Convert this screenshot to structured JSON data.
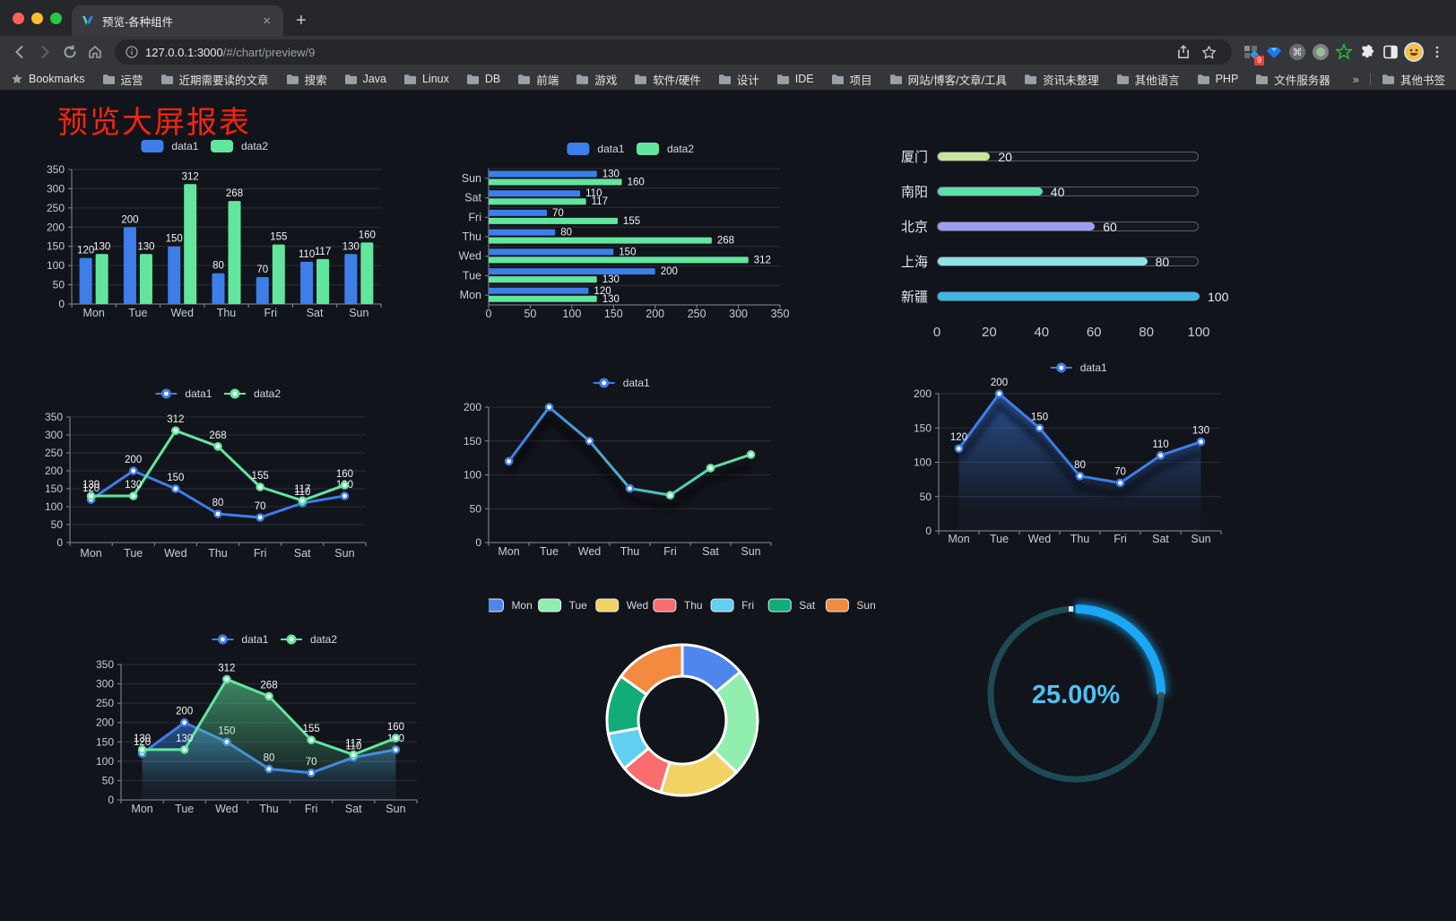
{
  "browser": {
    "tab_title": "预览-各种组件",
    "close_glyph": "×",
    "new_tab_glyph": "+",
    "url_host": "127.0.0.1:3000",
    "url_path": "/#/chart/preview/9",
    "extension_badge": "9",
    "bookmarks_label": "Bookmarks",
    "bookmark_folders": [
      "运营",
      "近期需要读的文章",
      "搜索",
      "Java",
      "Linux",
      "DB",
      "前端",
      "游戏",
      "软件/硬件",
      "设计",
      "IDE",
      "项目",
      "网站/博客/文章/工具",
      "资讯未整理",
      "其他语言",
      "PHP",
      "文件服务器"
    ],
    "overflow_chevron": "»",
    "other_bookmarks": "其他书签",
    "traffic_lights": {
      "close": "#FF5F57",
      "minimize": "#FEBC2E",
      "zoom": "#28C840"
    },
    "icons": {
      "toolbar": [
        "back-arrow",
        "forward-arrow",
        "reload",
        "home"
      ],
      "omnibox": [
        "info",
        "share",
        "bookmark-star"
      ],
      "extensions": [
        "grid-diamond-badge",
        "gem",
        "command",
        "record",
        "green-star",
        "puzzle",
        "split-view",
        "avatar-emoji",
        "kebab-menu"
      ]
    }
  },
  "page": {
    "title": "预览大屏报表",
    "title_color": "#F5250F",
    "background": "#12141B"
  },
  "chart_data": [
    {
      "id": "bar-grouped",
      "type": "bar",
      "categories": [
        "Mon",
        "Tue",
        "Wed",
        "Thu",
        "Fri",
        "Sat",
        "Sun"
      ],
      "series": [
        {
          "name": "data1",
          "color": "#3D7EE9",
          "values": [
            120,
            200,
            150,
            80,
            70,
            110,
            130
          ]
        },
        {
          "name": "data2",
          "color": "#62E69E",
          "values": [
            130,
            130,
            312,
            268,
            155,
            117,
            160
          ]
        }
      ],
      "ylim": [
        0,
        350
      ],
      "ystep": 50,
      "grid": true,
      "legend_position": "top",
      "point_labels": true
    },
    {
      "id": "bar-horizontal",
      "type": "bar-horizontal",
      "categories": [
        "Mon",
        "Tue",
        "Wed",
        "Thu",
        "Fri",
        "Sat",
        "Sun"
      ],
      "display_note": "Sun at top, Mon at bottom",
      "series": [
        {
          "name": "data1",
          "color": "#3D7EE9",
          "values": [
            120,
            200,
            150,
            80,
            70,
            110,
            130
          ]
        },
        {
          "name": "data2",
          "color": "#62E69E",
          "values": [
            130,
            130,
            312,
            268,
            155,
            117,
            160
          ]
        }
      ],
      "xlim": [
        0,
        350
      ],
      "xstep": 50,
      "legend_position": "top",
      "point_labels": true
    },
    {
      "id": "progress-capsules",
      "type": "progress-bars",
      "items": [
        {
          "label": "厦门",
          "value": 20,
          "color": "#C6E79B"
        },
        {
          "label": "南阳",
          "value": 40,
          "color": "#5BE1A6"
        },
        {
          "label": "北京",
          "value": 60,
          "color": "#9B9FF3"
        },
        {
          "label": "上海",
          "value": 80,
          "color": "#8EE3E6"
        },
        {
          "label": "新疆",
          "value": 100,
          "color": "#3FB6E6"
        }
      ],
      "xlim": [
        0,
        100
      ],
      "xticks": [
        0,
        20,
        40,
        60,
        80,
        100
      ]
    },
    {
      "id": "line-dual",
      "type": "line",
      "categories": [
        "Mon",
        "Tue",
        "Wed",
        "Thu",
        "Fri",
        "Sat",
        "Sun"
      ],
      "series": [
        {
          "name": "data1",
          "color": "#3D7EE9",
          "values": [
            120,
            200,
            150,
            80,
            70,
            110,
            130
          ]
        },
        {
          "name": "data2",
          "color": "#62E69E",
          "values": [
            130,
            130,
            312,
            268,
            155,
            117,
            160
          ]
        }
      ],
      "ylim": [
        0,
        350
      ],
      "ystep": 50,
      "legend_position": "top",
      "point_labels": true
    },
    {
      "id": "line-gradient",
      "type": "line",
      "categories": [
        "Mon",
        "Tue",
        "Wed",
        "Thu",
        "Fri",
        "Sat",
        "Sun"
      ],
      "series": [
        {
          "name": "data1",
          "color": "#3D7EE9",
          "color_gradient": [
            "#3D7EE9",
            "#62E69E"
          ],
          "shadow": true,
          "values": [
            120,
            200,
            150,
            80,
            70,
            110,
            130
          ]
        }
      ],
      "ylim": [
        0,
        200
      ],
      "ystep": 50,
      "legend_position": "top",
      "point_labels": false
    },
    {
      "id": "area-single",
      "type": "area",
      "categories": [
        "Mon",
        "Tue",
        "Wed",
        "Thu",
        "Fri",
        "Sat",
        "Sun"
      ],
      "series": [
        {
          "name": "data1",
          "color": "#3D7EE9",
          "area": true,
          "shadow": true,
          "values": [
            120,
            200,
            150,
            80,
            70,
            110,
            130
          ]
        }
      ],
      "ylim": [
        0,
        200
      ],
      "ystep": 50,
      "legend_position": "top",
      "point_labels": true
    },
    {
      "id": "area-dual",
      "type": "area",
      "categories": [
        "Mon",
        "Tue",
        "Wed",
        "Thu",
        "Fri",
        "Sat",
        "Sun"
      ],
      "series": [
        {
          "name": "data1",
          "color": "#3D7EE9",
          "area": true,
          "values": [
            120,
            200,
            150,
            80,
            70,
            110,
            130
          ]
        },
        {
          "name": "data2",
          "color": "#62E69E",
          "area": true,
          "values": [
            130,
            130,
            312,
            268,
            155,
            117,
            160
          ]
        }
      ],
      "ylim": [
        0,
        350
      ],
      "ystep": 50,
      "legend_position": "top",
      "point_labels": true
    },
    {
      "id": "donut",
      "type": "pie",
      "labels": [
        "Mon",
        "Tue",
        "Wed",
        "Thu",
        "Fri",
        "Sat",
        "Sun"
      ],
      "values": [
        120,
        200,
        150,
        80,
        70,
        110,
        130
      ],
      "colors": [
        "#4E86EE",
        "#90EFAF",
        "#F2D262",
        "#F96C70",
        "#61CFF2",
        "#12AC79",
        "#F28B3F"
      ],
      "inner_radius_ratio": 0.58,
      "border_color": "#FFFFFF",
      "legend_position": "top"
    },
    {
      "id": "ring",
      "type": "ring-progress",
      "value_percent": 25,
      "label": "25.00%",
      "arc_color": "#1AA7F5",
      "track_color": "#1D4A55",
      "text_color": "#4FC0F2"
    }
  ]
}
